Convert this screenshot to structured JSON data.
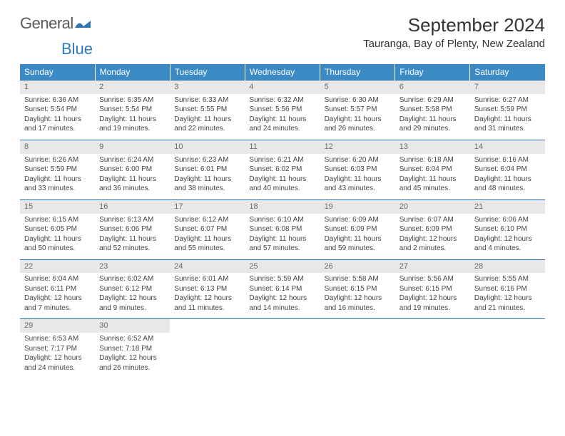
{
  "brand": {
    "part1": "General",
    "part2": "Blue"
  },
  "title": "September 2024",
  "location": "Tauranga, Bay of Plenty, New Zealand",
  "colors": {
    "header_bg": "#3b8ac4",
    "header_text": "#ffffff",
    "row_border": "#2c6fa8",
    "daynum_bg": "#e8e8e8",
    "daynum_text": "#6b6b6b",
    "body_text": "#444444",
    "brand_gray": "#5b5b5b",
    "brand_blue": "#2f78b9"
  },
  "day_headers": [
    "Sunday",
    "Monday",
    "Tuesday",
    "Wednesday",
    "Thursday",
    "Friday",
    "Saturday"
  ],
  "days": [
    {
      "n": "1",
      "sunrise": "6:36 AM",
      "sunset": "5:54 PM",
      "daylight": "11 hours and 17 minutes."
    },
    {
      "n": "2",
      "sunrise": "6:35 AM",
      "sunset": "5:54 PM",
      "daylight": "11 hours and 19 minutes."
    },
    {
      "n": "3",
      "sunrise": "6:33 AM",
      "sunset": "5:55 PM",
      "daylight": "11 hours and 22 minutes."
    },
    {
      "n": "4",
      "sunrise": "6:32 AM",
      "sunset": "5:56 PM",
      "daylight": "11 hours and 24 minutes."
    },
    {
      "n": "5",
      "sunrise": "6:30 AM",
      "sunset": "5:57 PM",
      "daylight": "11 hours and 26 minutes."
    },
    {
      "n": "6",
      "sunrise": "6:29 AM",
      "sunset": "5:58 PM",
      "daylight": "11 hours and 29 minutes."
    },
    {
      "n": "7",
      "sunrise": "6:27 AM",
      "sunset": "5:59 PM",
      "daylight": "11 hours and 31 minutes."
    },
    {
      "n": "8",
      "sunrise": "6:26 AM",
      "sunset": "5:59 PM",
      "daylight": "11 hours and 33 minutes."
    },
    {
      "n": "9",
      "sunrise": "6:24 AM",
      "sunset": "6:00 PM",
      "daylight": "11 hours and 36 minutes."
    },
    {
      "n": "10",
      "sunrise": "6:23 AM",
      "sunset": "6:01 PM",
      "daylight": "11 hours and 38 minutes."
    },
    {
      "n": "11",
      "sunrise": "6:21 AM",
      "sunset": "6:02 PM",
      "daylight": "11 hours and 40 minutes."
    },
    {
      "n": "12",
      "sunrise": "6:20 AM",
      "sunset": "6:03 PM",
      "daylight": "11 hours and 43 minutes."
    },
    {
      "n": "13",
      "sunrise": "6:18 AM",
      "sunset": "6:04 PM",
      "daylight": "11 hours and 45 minutes."
    },
    {
      "n": "14",
      "sunrise": "6:16 AM",
      "sunset": "6:04 PM",
      "daylight": "11 hours and 48 minutes."
    },
    {
      "n": "15",
      "sunrise": "6:15 AM",
      "sunset": "6:05 PM",
      "daylight": "11 hours and 50 minutes."
    },
    {
      "n": "16",
      "sunrise": "6:13 AM",
      "sunset": "6:06 PM",
      "daylight": "11 hours and 52 minutes."
    },
    {
      "n": "17",
      "sunrise": "6:12 AM",
      "sunset": "6:07 PM",
      "daylight": "11 hours and 55 minutes."
    },
    {
      "n": "18",
      "sunrise": "6:10 AM",
      "sunset": "6:08 PM",
      "daylight": "11 hours and 57 minutes."
    },
    {
      "n": "19",
      "sunrise": "6:09 AM",
      "sunset": "6:09 PM",
      "daylight": "11 hours and 59 minutes."
    },
    {
      "n": "20",
      "sunrise": "6:07 AM",
      "sunset": "6:09 PM",
      "daylight": "12 hours and 2 minutes."
    },
    {
      "n": "21",
      "sunrise": "6:06 AM",
      "sunset": "6:10 PM",
      "daylight": "12 hours and 4 minutes."
    },
    {
      "n": "22",
      "sunrise": "6:04 AM",
      "sunset": "6:11 PM",
      "daylight": "12 hours and 7 minutes."
    },
    {
      "n": "23",
      "sunrise": "6:02 AM",
      "sunset": "6:12 PM",
      "daylight": "12 hours and 9 minutes."
    },
    {
      "n": "24",
      "sunrise": "6:01 AM",
      "sunset": "6:13 PM",
      "daylight": "12 hours and 11 minutes."
    },
    {
      "n": "25",
      "sunrise": "5:59 AM",
      "sunset": "6:14 PM",
      "daylight": "12 hours and 14 minutes."
    },
    {
      "n": "26",
      "sunrise": "5:58 AM",
      "sunset": "6:15 PM",
      "daylight": "12 hours and 16 minutes."
    },
    {
      "n": "27",
      "sunrise": "5:56 AM",
      "sunset": "6:15 PM",
      "daylight": "12 hours and 19 minutes."
    },
    {
      "n": "28",
      "sunrise": "5:55 AM",
      "sunset": "6:16 PM",
      "daylight": "12 hours and 21 minutes."
    },
    {
      "n": "29",
      "sunrise": "6:53 AM",
      "sunset": "7:17 PM",
      "daylight": "12 hours and 24 minutes."
    },
    {
      "n": "30",
      "sunrise": "6:52 AM",
      "sunset": "7:18 PM",
      "daylight": "12 hours and 26 minutes."
    }
  ],
  "labels": {
    "sunrise_prefix": "Sunrise: ",
    "sunset_prefix": "Sunset: ",
    "daylight_prefix": "Daylight: "
  }
}
